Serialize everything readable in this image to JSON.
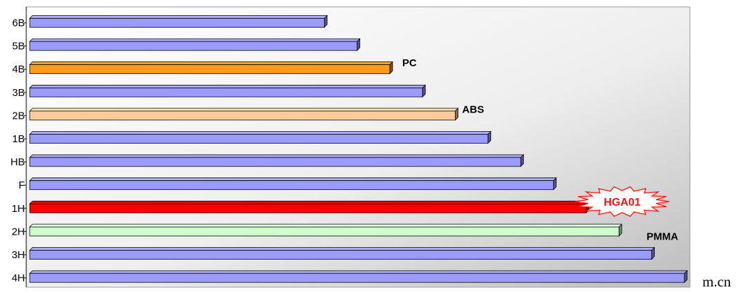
{
  "chart_data": {
    "type": "bar",
    "orientation": "horizontal",
    "categories": [
      "6B",
      "5B",
      "4B",
      "3B",
      "2B",
      "1B",
      "HB",
      "F",
      "1H",
      "2H",
      "3H",
      "4H"
    ],
    "values": [
      9,
      10,
      11,
      12,
      13,
      14,
      15,
      16,
      17,
      18,
      19,
      20
    ],
    "bar_colors": [
      "#9b9bff",
      "#9b9bff",
      "#ff9a1a",
      "#9b9bff",
      "#ffcc99",
      "#9b9bff",
      "#9b9bff",
      "#9b9bff",
      "#ff0000",
      "#ccffcc",
      "#9b9bff",
      "#9b9bff"
    ],
    "annotations": [
      {
        "category": "4B",
        "text": "PC",
        "style": "plain"
      },
      {
        "category": "2B",
        "text": "ABS",
        "style": "plain"
      },
      {
        "category": "1H",
        "text": "HGA01",
        "style": "burst"
      },
      {
        "category": "2H",
        "text": "PMMA",
        "style": "plain"
      }
    ],
    "xlim": [
      0,
      20
    ],
    "grid": false,
    "legend": "none"
  },
  "fragment_text": "m.cn"
}
